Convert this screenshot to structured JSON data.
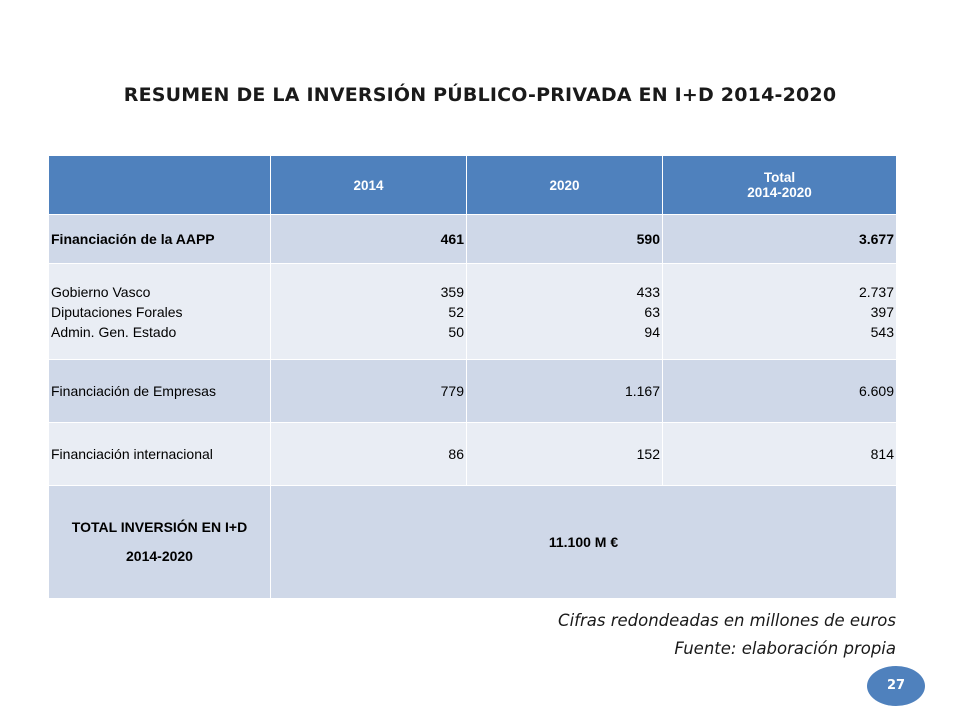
{
  "title": "RESUMEN DE LA INVERSIÓN PÚBLICO-PRIVADA EN I+D 2014-2020",
  "table": {
    "header": {
      "col1": "",
      "col2": "2014",
      "col3": "2020",
      "col4_line1": "Total",
      "col4_line2": "2014-2020"
    },
    "rows": {
      "aapp": {
        "label": "Financiación de la AAPP",
        "v2014": "461",
        "v2020": "590",
        "total": "3.677"
      },
      "sub": [
        {
          "label": "Gobierno Vasco",
          "v2014": "359",
          "v2020": "433",
          "total": "2.737"
        },
        {
          "label": "Diputaciones Forales",
          "v2014": "52",
          "v2020": "63",
          "total": "397"
        },
        {
          "label": "Admin. Gen. Estado",
          "v2014": "50",
          "v2020": "94",
          "total": "543"
        }
      ],
      "empresas": {
        "label": "Financiación de Empresas",
        "v2014": "779",
        "v2020": "1.167",
        "total": "6.609"
      },
      "internacional": {
        "label": "Financiación internacional",
        "v2014": "86",
        "v2020": "152",
        "total": "814"
      }
    },
    "total": {
      "label_line1": "TOTAL INVERSIÓN EN I+D",
      "label_line2": "2014-2020",
      "value": "11.100 M €"
    }
  },
  "notes": {
    "line1": "Cifras redondeadas en millones de euros",
    "line2": "Fuente: elaboración propia"
  },
  "page_number": "27",
  "colors": {
    "header_bg": "#4f81bd",
    "row_dark": "#cfd8e8",
    "row_light": "#e9edf4"
  }
}
